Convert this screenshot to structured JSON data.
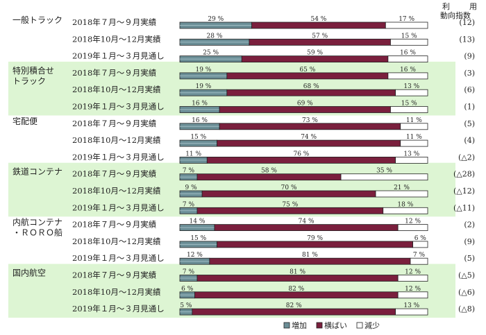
{
  "chart_data": {
    "type": "bar",
    "stacked": true,
    "orientation": "horizontal",
    "percent_scale": [
      0,
      100
    ],
    "header": [
      "利",
      "用",
      "動向指数"
    ],
    "legend": {
      "placement": "bottom",
      "items": [
        {
          "name": "増加",
          "color": "#6b8e96"
        },
        {
          "name": "横ばい",
          "color": "#7a1f3d"
        },
        {
          "name": "減少",
          "color": "#ffffff"
        }
      ]
    },
    "group_band_color": "#ddf5d3",
    "groups": [
      {
        "name": "一般トラック",
        "banded": false,
        "rows": [
          {
            "period": "2018年７月～９月実績",
            "values": [
              29,
              54,
              17
            ],
            "index": "(12)"
          },
          {
            "period": "2018年10月～12月実績",
            "values": [
              28,
              57,
              15
            ],
            "index": "(13)"
          },
          {
            "period": "2019年１月～３月見通し",
            "values": [
              25,
              59,
              16
            ],
            "index": "(9)"
          }
        ]
      },
      {
        "name": "特別積合せ\nトラック",
        "banded": true,
        "rows": [
          {
            "period": "2018年７月～９月実績",
            "values": [
              19,
              65,
              16
            ],
            "index": "(3)"
          },
          {
            "period": "2018年10月～12月実績",
            "values": [
              19,
              68,
              13
            ],
            "index": "(6)"
          },
          {
            "period": "2019年１月～３月見通し",
            "values": [
              16,
              69,
              15
            ],
            "index": "(1)"
          }
        ]
      },
      {
        "name": "宅配便",
        "banded": false,
        "rows": [
          {
            "period": "2018年７月～９月実績",
            "values": [
              16,
              73,
              11
            ],
            "index": "(5)"
          },
          {
            "period": "2018年10月～12月実績",
            "values": [
              15,
              74,
              11
            ],
            "index": "(4)"
          },
          {
            "period": "2019年１月～３月見通し",
            "values": [
              11,
              76,
              13
            ],
            "index": "(△2)"
          }
        ]
      },
      {
        "name": "鉄道コンテナ",
        "banded": true,
        "rows": [
          {
            "period": "2018年７月～９月実績",
            "values": [
              7,
              58,
              35
            ],
            "index": "(△28)"
          },
          {
            "period": "2018年10月～12月実績",
            "values": [
              9,
              70,
              21
            ],
            "index": "(△12)"
          },
          {
            "period": "2019年１月～３月見通し",
            "values": [
              7,
              75,
              18
            ],
            "index": "(△11)"
          }
        ]
      },
      {
        "name": "内航コンテナ\n・ＲＯＲＯ船",
        "banded": false,
        "rows": [
          {
            "period": "2018年７月～９月実績",
            "values": [
              14,
              74,
              12
            ],
            "index": "(2)"
          },
          {
            "period": "2018年10月～12月実績",
            "values": [
              15,
              79,
              6
            ],
            "index": "(9)"
          },
          {
            "period": "2019年１月～３月見通し",
            "values": [
              12,
              81,
              7
            ],
            "index": "(5)"
          }
        ]
      },
      {
        "name": "国内航空",
        "banded": true,
        "rows": [
          {
            "period": "2018年７月～９月実績",
            "values": [
              7,
              81,
              12
            ],
            "index": "(△5)"
          },
          {
            "period": "2018年10月～12月実績",
            "values": [
              6,
              82,
              12
            ],
            "index": "(△6)"
          },
          {
            "period": "2019年１月～３月見通し",
            "values": [
              5,
              82,
              13
            ],
            "index": "(△8)"
          }
        ]
      }
    ]
  }
}
